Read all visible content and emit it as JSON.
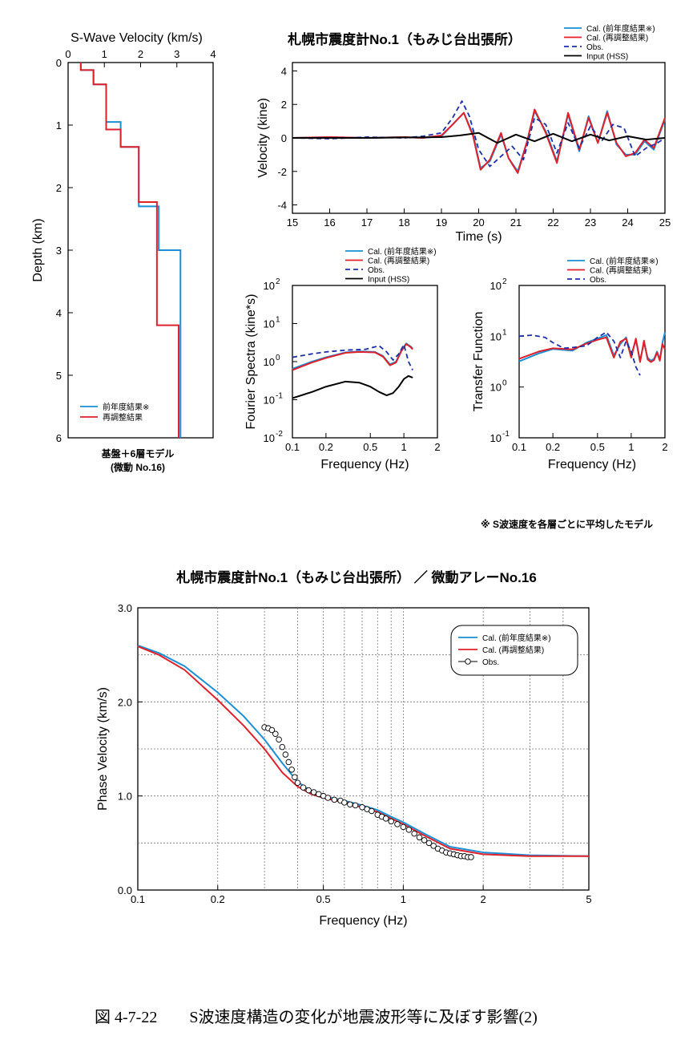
{
  "colors": {
    "cal_prev": "#1a8fd6",
    "cal_re": "#e0202a",
    "obs": "#1c2fa8",
    "input": "#000000"
  },
  "note": "※ S波速度を各層ごとに平均したモデル",
  "caption": "図 4-7-22　　S波速度構造の変化が地震波形等に及ぼす影響(2)",
  "chart_data": [
    {
      "type": "line",
      "title": "S-Wave Velocity (km/s)",
      "xlabel": "",
      "ylabel": "Depth (km)",
      "xlim": [
        0,
        4
      ],
      "ylim": [
        6,
        0
      ],
      "xticks": [
        0,
        1,
        2,
        3,
        4
      ],
      "yticks": [
        0,
        1,
        2,
        3,
        4,
        5,
        6
      ],
      "sublabel1": "基盤＋6層モデル",
      "sublabel2": "(微動 No.16)",
      "series": [
        {
          "name": "前年度結果※",
          "color": "cal_prev",
          "steps": [
            [
              0.35,
              0
            ],
            [
              0.35,
              0.12
            ],
            [
              0.7,
              0.12
            ],
            [
              0.7,
              0.35
            ],
            [
              1.05,
              0.35
            ],
            [
              1.05,
              0.95
            ],
            [
              1.45,
              0.95
            ],
            [
              1.45,
              1.35
            ],
            [
              1.95,
              1.35
            ],
            [
              1.95,
              2.3
            ],
            [
              2.5,
              2.3
            ],
            [
              2.5,
              3.0
            ],
            [
              3.1,
              3.0
            ],
            [
              3.1,
              6
            ]
          ]
        },
        {
          "name": "再調整結果",
          "color": "cal_re",
          "steps": [
            [
              0.35,
              0
            ],
            [
              0.35,
              0.12
            ],
            [
              0.7,
              0.12
            ],
            [
              0.7,
              0.35
            ],
            [
              1.05,
              0.35
            ],
            [
              1.05,
              1.07
            ],
            [
              1.45,
              1.07
            ],
            [
              1.45,
              1.35
            ],
            [
              1.95,
              1.35
            ],
            [
              1.95,
              2.23
            ],
            [
              2.45,
              2.23
            ],
            [
              2.45,
              4.2
            ],
            [
              3.05,
              4.2
            ],
            [
              3.05,
              6
            ]
          ]
        }
      ]
    },
    {
      "type": "line",
      "title": "札幌市震度計No.1（もみじ台出張所）",
      "xlabel": "Time (s)",
      "ylabel": "Velocity (kine)",
      "xlim": [
        15,
        25
      ],
      "ylim": [
        -4.5,
        4.5
      ],
      "xticks": [
        15,
        16,
        17,
        18,
        19,
        20,
        21,
        22,
        23,
        24,
        25
      ],
      "yticks": [
        -4,
        -2,
        0,
        2,
        4
      ],
      "series": [
        {
          "name": "Cal. (前年度結果※)",
          "color": "cal_prev",
          "style": "solid",
          "x": [
            15,
            16,
            17,
            18,
            18.5,
            19,
            19.3,
            19.6,
            19.85,
            20.05,
            20.3,
            20.6,
            20.8,
            21.05,
            21.3,
            21.5,
            21.8,
            22.1,
            22.4,
            22.7,
            22.95,
            23.2,
            23.45,
            23.7,
            23.95,
            24.2,
            24.45,
            24.7,
            25
          ],
          "y": [
            0,
            0.05,
            0,
            0.05,
            0,
            0.1,
            0.8,
            1.5,
            0.2,
            -1.8,
            -1.4,
            0.2,
            -1.2,
            -2.0,
            -0.2,
            1.6,
            0.4,
            -1.4,
            1.4,
            -0.8,
            1.3,
            -0.3,
            1.6,
            -0.4,
            -1.0,
            -1.0,
            -0.2,
            -0.7,
            1.1
          ]
        },
        {
          "name": "Cal. (再調整結果)",
          "color": "cal_re",
          "style": "solid",
          "x": [
            15,
            16,
            17,
            18,
            18.5,
            19,
            19.3,
            19.6,
            19.85,
            20.05,
            20.3,
            20.6,
            20.8,
            21.05,
            21.3,
            21.5,
            21.8,
            22.1,
            22.4,
            22.7,
            22.95,
            23.2,
            23.45,
            23.7,
            23.95,
            24.2,
            24.45,
            24.7,
            25
          ],
          "y": [
            0,
            0.05,
            0,
            0.05,
            0,
            0.15,
            0.8,
            1.5,
            0.1,
            -1.9,
            -1.3,
            0.3,
            -1.2,
            -2.1,
            -0.2,
            1.7,
            0.3,
            -1.5,
            1.5,
            -0.7,
            1.2,
            -0.3,
            1.5,
            -0.3,
            -1.1,
            -0.9,
            -0.1,
            -0.6,
            1.2
          ]
        },
        {
          "name": "Obs.",
          "color": "obs",
          "style": "dashed",
          "x": [
            15,
            16,
            17,
            18,
            18.5,
            19,
            19.3,
            19.55,
            19.75,
            20,
            20.3,
            20.6,
            20.9,
            21.2,
            21.5,
            21.8,
            22.1,
            22.4,
            22.7,
            23.0,
            23.3,
            23.6,
            23.9,
            24.2,
            24.5,
            24.8,
            25
          ],
          "y": [
            0,
            -0.05,
            0.05,
            0,
            0.1,
            0.3,
            1.2,
            2.2,
            1.3,
            -0.7,
            -1.7,
            -1.1,
            -0.5,
            -1.3,
            1.2,
            0.8,
            -0.9,
            0.9,
            -0.6,
            0.7,
            -0.2,
            0.8,
            0.6,
            -1.1,
            -0.6,
            -0.3,
            0
          ]
        },
        {
          "name": "Input (HSS)",
          "color": "input",
          "style": "solid",
          "x": [
            15,
            17,
            19,
            19.5,
            20,
            20.5,
            21,
            21.5,
            22,
            22.5,
            23,
            23.5,
            24,
            24.5,
            25
          ],
          "y": [
            0,
            0,
            0.05,
            0.15,
            0.3,
            -0.3,
            0.2,
            -0.2,
            0.25,
            -0.2,
            0.2,
            -0.15,
            0.1,
            -0.1,
            0
          ]
        }
      ]
    },
    {
      "type": "line",
      "title": "",
      "xlabel": "Frequency (Hz)",
      "ylabel": "Fourier Spectra (kine*s)",
      "xlim": [
        0.1,
        2
      ],
      "ylim": [
        0.01,
        100
      ],
      "logx": true,
      "logy": true,
      "xticks": [
        0.1,
        0.2,
        0.5,
        1,
        2
      ],
      "xticklabels": [
        "0.1",
        "0.2",
        "0.5",
        "1",
        "2"
      ],
      "yticks": [
        0.01,
        0.1,
        1,
        10,
        100
      ],
      "ytickbase": "10",
      "ytickexp": [
        "-2",
        "-1",
        "0",
        "1",
        "2"
      ],
      "series": [
        {
          "name": "Cal. (前年度結果※)",
          "color": "cal_prev",
          "style": "solid",
          "x": [
            0.1,
            0.15,
            0.2,
            0.3,
            0.4,
            0.55,
            0.65,
            0.75,
            0.85,
            0.95,
            1.05,
            1.15,
            1.2
          ],
          "y": [
            0.65,
            1.0,
            1.3,
            1.75,
            1.85,
            1.8,
            1.4,
            0.85,
            1.0,
            2.0,
            3.0,
            2.5,
            2.2
          ]
        },
        {
          "name": "Cal. (再調整結果)",
          "color": "cal_re",
          "style": "solid",
          "x": [
            0.1,
            0.15,
            0.2,
            0.3,
            0.4,
            0.55,
            0.65,
            0.75,
            0.85,
            0.95,
            1.05,
            1.15,
            1.2
          ],
          "y": [
            0.6,
            0.95,
            1.25,
            1.7,
            1.8,
            1.75,
            1.35,
            0.8,
            0.95,
            1.9,
            2.9,
            2.4,
            2.1
          ]
        },
        {
          "name": "Obs.",
          "color": "obs",
          "style": "dashed",
          "x": [
            0.1,
            0.15,
            0.2,
            0.3,
            0.45,
            0.6,
            0.7,
            0.8,
            0.9,
            1.0,
            1.1,
            1.2
          ],
          "y": [
            1.3,
            1.6,
            1.8,
            2.0,
            2.1,
            2.6,
            1.8,
            1.1,
            1.6,
            2.8,
            1.0,
            0.6
          ]
        },
        {
          "name": "Input (HSS)",
          "color": "input",
          "style": "solid",
          "x": [
            0.1,
            0.15,
            0.2,
            0.3,
            0.4,
            0.5,
            0.6,
            0.7,
            0.8,
            0.9,
            1.0,
            1.1,
            1.2
          ],
          "y": [
            0.11,
            0.16,
            0.22,
            0.3,
            0.28,
            0.22,
            0.16,
            0.13,
            0.15,
            0.22,
            0.35,
            0.42,
            0.38
          ]
        }
      ]
    },
    {
      "type": "line",
      "title": "",
      "xlabel": "Frequency (Hz)",
      "ylabel": "Transfer Function",
      "xlim": [
        0.1,
        2
      ],
      "ylim": [
        0.1,
        100
      ],
      "logx": true,
      "logy": true,
      "xticks": [
        0.1,
        0.2,
        0.5,
        1,
        2
      ],
      "xticklabels": [
        "0.1",
        "0.2",
        "0.5",
        "1",
        "2"
      ],
      "yticks": [
        0.1,
        1,
        10,
        100
      ],
      "ytickbase": "10",
      "ytickexp": [
        "-1",
        "0",
        "1",
        "2"
      ],
      "series": [
        {
          "name": "Cal. (前年度結果※)",
          "color": "cal_prev",
          "style": "solid",
          "x": [
            0.1,
            0.15,
            0.2,
            0.3,
            0.4,
            0.5,
            0.6,
            0.7,
            0.8,
            0.9,
            1.0,
            1.1,
            1.2,
            1.3,
            1.4,
            1.5,
            1.6,
            1.7,
            1.8,
            1.9,
            2.0
          ],
          "y": [
            3.2,
            4.6,
            5.6,
            5.2,
            7.5,
            9.0,
            10.5,
            4.2,
            7.0,
            9.5,
            4.2,
            8.5,
            3.3,
            7.5,
            3.8,
            3.3,
            3.6,
            5.0,
            3.5,
            7.5,
            12.0
          ]
        },
        {
          "name": "Cal. (再調整結果)",
          "color": "cal_re",
          "style": "solid",
          "x": [
            0.1,
            0.15,
            0.2,
            0.3,
            0.4,
            0.5,
            0.6,
            0.7,
            0.8,
            0.9,
            1.0,
            1.1,
            1.2,
            1.3,
            1.4,
            1.5,
            1.6,
            1.7,
            1.8,
            1.9,
            2.0
          ],
          "y": [
            3.6,
            5.0,
            5.8,
            5.5,
            7.2,
            8.5,
            9.5,
            3.8,
            7.8,
            9.0,
            3.8,
            9.0,
            3.1,
            8.2,
            3.5,
            3.1,
            3.4,
            4.8,
            3.3,
            7.0,
            5.5
          ]
        },
        {
          "name": "Obs.",
          "color": "obs",
          "style": "dashed",
          "x": [
            0.1,
            0.13,
            0.17,
            0.2,
            0.25,
            0.3,
            0.4,
            0.5,
            0.6,
            0.7,
            0.8,
            0.9,
            1.0,
            1.1,
            1.2
          ],
          "y": [
            10,
            10.5,
            9.5,
            7.5,
            5.8,
            6.0,
            6.5,
            9.5,
            12.0,
            8.0,
            3.8,
            8.0,
            5.0,
            2.5,
            1.7
          ]
        }
      ]
    },
    {
      "type": "scatter",
      "title": "札幌市震度計No.1（もみじ台出張所） ／ 微動アレーNo.16",
      "xlabel": "Frequency (Hz)",
      "ylabel": "Phase Velocity (km/s)",
      "xlim": [
        0.1,
        5
      ],
      "ylim": [
        0,
        3.0
      ],
      "logx": true,
      "xticks": [
        0.1,
        0.2,
        0.5,
        1,
        2,
        5
      ],
      "xticklabels": [
        "0.1",
        "0.2",
        "0.5",
        "1",
        "2",
        "5"
      ],
      "yticks": [
        0,
        1,
        2,
        3
      ],
      "yticklabels": [
        "0.0",
        "1.0",
        "2.0",
        "3.0"
      ],
      "series": [
        {
          "name": "Cal. (前年度結果※)",
          "color": "cal_prev",
          "style": "line",
          "x": [
            0.1,
            0.12,
            0.15,
            0.2,
            0.25,
            0.3,
            0.35,
            0.4,
            0.45,
            0.5,
            0.6,
            0.7,
            0.8,
            0.9,
            1.0,
            1.2,
            1.5,
            2,
            3,
            5
          ],
          "y": [
            2.6,
            2.52,
            2.38,
            2.1,
            1.85,
            1.6,
            1.35,
            1.15,
            1.05,
            1.0,
            0.95,
            0.9,
            0.85,
            0.78,
            0.72,
            0.6,
            0.46,
            0.4,
            0.37,
            0.36
          ]
        },
        {
          "name": "Cal. (再調整結果)",
          "color": "cal_re",
          "style": "line",
          "x": [
            0.1,
            0.12,
            0.15,
            0.2,
            0.25,
            0.3,
            0.35,
            0.4,
            0.45,
            0.5,
            0.6,
            0.7,
            0.8,
            0.9,
            1.0,
            1.2,
            1.5,
            2,
            3,
            5
          ],
          "y": [
            2.59,
            2.5,
            2.34,
            2.02,
            1.75,
            1.5,
            1.25,
            1.1,
            1.02,
            0.98,
            0.93,
            0.88,
            0.83,
            0.76,
            0.7,
            0.58,
            0.44,
            0.38,
            0.36,
            0.36
          ]
        },
        {
          "name": "Obs.",
          "color": "obs",
          "style": "markers",
          "x": [
            0.3,
            0.31,
            0.32,
            0.33,
            0.34,
            0.35,
            0.36,
            0.37,
            0.38,
            0.39,
            0.4,
            0.42,
            0.44,
            0.46,
            0.48,
            0.5,
            0.52,
            0.55,
            0.58,
            0.6,
            0.63,
            0.66,
            0.7,
            0.73,
            0.76,
            0.8,
            0.83,
            0.86,
            0.9,
            0.95,
            1.0,
            1.05,
            1.1,
            1.15,
            1.2,
            1.25,
            1.3,
            1.35,
            1.4,
            1.45,
            1.5,
            1.55,
            1.6,
            1.65,
            1.7,
            1.75,
            1.8
          ],
          "y": [
            1.73,
            1.72,
            1.7,
            1.66,
            1.6,
            1.52,
            1.44,
            1.36,
            1.28,
            1.2,
            1.14,
            1.09,
            1.06,
            1.04,
            1.02,
            1.0,
            0.98,
            0.96,
            0.95,
            0.93,
            0.91,
            0.9,
            0.88,
            0.86,
            0.84,
            0.8,
            0.78,
            0.76,
            0.73,
            0.7,
            0.67,
            0.64,
            0.6,
            0.56,
            0.53,
            0.5,
            0.47,
            0.44,
            0.42,
            0.4,
            0.39,
            0.38,
            0.37,
            0.36,
            0.36,
            0.35,
            0.35
          ]
        }
      ]
    }
  ]
}
